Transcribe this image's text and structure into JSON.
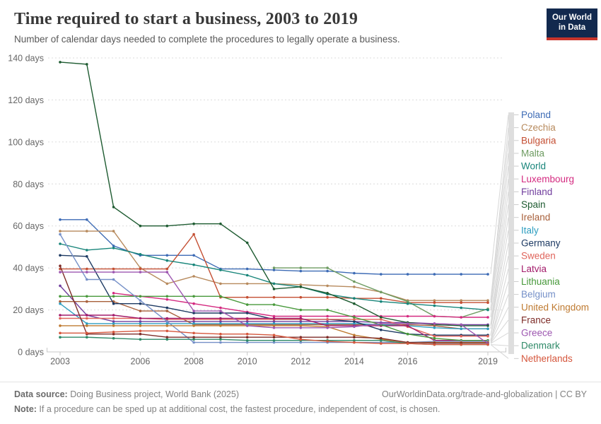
{
  "header": {
    "title": "Time required to start a business, 2003 to 2019",
    "subtitle": "Number of calendar days needed to complete the procedures to legally operate a business."
  },
  "logo": {
    "line1": "Our World",
    "line2": "in Data"
  },
  "footer": {
    "source_label": "Data source:",
    "source_text": " Doing Business project, World Bank (2025)",
    "link_url": "OurWorldinData.org/trade-and-globalization",
    "separator": " | ",
    "license": "CC BY",
    "note_label": "Note:",
    "note_text": " If a procedure can be sped up at additional cost, the fastest procedure, independent of cost, is chosen."
  },
  "chart_data": {
    "type": "line",
    "title": "Time required to start a business, 2003 to 2019",
    "ylabel": "",
    "xlabel": "",
    "ylim": [
      0,
      140
    ],
    "yticks": [
      0,
      20,
      40,
      60,
      80,
      100,
      120,
      140
    ],
    "y_suffix": " days",
    "xticks": [
      2003,
      2006,
      2008,
      2010,
      2012,
      2014,
      2016,
      2019
    ],
    "grid": "dashed",
    "legend_position": "right",
    "x": [
      2003,
      2004,
      2005,
      2006,
      2007,
      2008,
      2009,
      2010,
      2011,
      2012,
      2013,
      2014,
      2015,
      2016,
      2017,
      2018,
      2019
    ],
    "series": [
      {
        "name": "Poland",
        "color": "#3d6bb5",
        "values": [
          63,
          63,
          50.5,
          46,
          46,
          46,
          39.5,
          39.5,
          39,
          38.5,
          38.5,
          37.5,
          37,
          37,
          37,
          37,
          37
        ]
      },
      {
        "name": "Czechia",
        "color": "#b78a5d",
        "values": [
          57.5,
          57.5,
          57.5,
          40,
          32.5,
          36,
          32.5,
          32.5,
          32.5,
          32,
          31.5,
          31,
          28.5,
          24.5,
          24.5,
          24.5,
          24.5
        ]
      },
      {
        "name": "Bulgaria",
        "color": "#c44f33",
        "values": [
          39.5,
          39.5,
          39.5,
          39.5,
          39.5,
          56,
          26,
          26,
          26,
          26,
          26,
          25.5,
          25.5,
          23.5,
          23.5,
          23.5,
          23.5
        ]
      },
      {
        "name": "Malta",
        "color": "#6f9c62",
        "values": [
          null,
          null,
          null,
          null,
          null,
          null,
          null,
          null,
          40,
          40,
          40,
          33.5,
          28.5,
          24,
          17,
          16.5,
          20.5
        ]
      },
      {
        "name": "World",
        "color": "#18857a",
        "values": [
          51.5,
          48.5,
          49.5,
          46.5,
          43.5,
          41.5,
          39,
          36.5,
          32.5,
          31,
          27.5,
          25.5,
          24,
          23,
          22,
          21,
          20
        ]
      },
      {
        "name": "Luxembourg",
        "color": "#d42a80",
        "values": [
          null,
          null,
          28,
          26.5,
          25,
          23,
          21,
          19,
          17,
          17,
          17,
          17,
          17,
          17,
          17,
          16.5,
          16.5
        ]
      },
      {
        "name": "Finland",
        "color": "#713e9e",
        "values": [
          31.5,
          17.5,
          14.5,
          14.5,
          14.5,
          14.5,
          14.5,
          14.5,
          14.5,
          14.5,
          14.5,
          14.5,
          14,
          14,
          13.5,
          13,
          13
        ]
      },
      {
        "name": "Spain",
        "color": "#1e5b31",
        "values": [
          138,
          137,
          69,
          60,
          60,
          61,
          61,
          52,
          30,
          31,
          28,
          23,
          16.5,
          14,
          13,
          12.5,
          12.5
        ]
      },
      {
        "name": "Ireland",
        "color": "#a8603b",
        "values": [
          24,
          24,
          24,
          19.5,
          19.5,
          13,
          13,
          13,
          13,
          13,
          13,
          13,
          13,
          13,
          12.5,
          11,
          11
        ]
      },
      {
        "name": "Italy",
        "color": "#2f9ec0",
        "values": [
          23,
          13.5,
          13.5,
          13.5,
          13.5,
          13.5,
          13.5,
          13.5,
          13.5,
          13.5,
          13.5,
          13.5,
          13,
          12.5,
          11.5,
          11,
          11
        ]
      },
      {
        "name": "Germany",
        "color": "#1d3a63",
        "values": [
          46,
          45.5,
          23,
          23,
          21,
          18.5,
          18.5,
          18.5,
          15.5,
          15.5,
          15.5,
          14.5,
          10.5,
          8.5,
          8,
          8,
          8
        ]
      },
      {
        "name": "Sweden",
        "color": "#e0655c",
        "values": [
          16,
          16,
          16,
          16,
          15.5,
          15.5,
          15.5,
          15.5,
          15.5,
          15.5,
          15.5,
          15.5,
          15.5,
          12,
          7.5,
          7.5,
          7.5
        ]
      },
      {
        "name": "Latvia",
        "color": "#a31c6b",
        "values": [
          17.5,
          17.5,
          17.5,
          16,
          16,
          16,
          16,
          16,
          16,
          16,
          12.5,
          12.5,
          12.5,
          12.5,
          5.5,
          5.5,
          5.5
        ]
      },
      {
        "name": "Lithuania",
        "color": "#48993b",
        "values": [
          26.5,
          26.5,
          26.5,
          26.5,
          26.5,
          26.5,
          26.5,
          22.5,
          22.5,
          20,
          20,
          16.5,
          13,
          8.5,
          6.5,
          5.5,
          5.5
        ]
      },
      {
        "name": "Belgium",
        "color": "#7590c8",
        "values": [
          56,
          34.5,
          34.5,
          24.5,
          14.5,
          4.5,
          4.5,
          4.5,
          4.5,
          4.5,
          4.5,
          4.5,
          4.5,
          4.5,
          5,
          5,
          5
        ]
      },
      {
        "name": "United Kingdom",
        "color": "#bf7b32",
        "values": [
          12.5,
          12.5,
          12.5,
          12.5,
          12.5,
          12.5,
          12.5,
          12.5,
          12.5,
          12.5,
          12,
          8,
          6,
          4.5,
          4.5,
          4.5,
          4.5
        ]
      },
      {
        "name": "France",
        "color": "#7e2d29",
        "values": [
          41,
          8.5,
          8.5,
          8.5,
          7,
          7,
          7,
          7,
          7,
          7,
          7,
          7,
          6.5,
          4.5,
          4.2,
          4.2,
          4.2
        ]
      },
      {
        "name": "Greece",
        "color": "#9d57b0",
        "values": [
          38,
          38,
          38,
          38,
          38,
          19.5,
          19.5,
          12.5,
          11.5,
          11.5,
          11.5,
          12,
          13.5,
          13.5,
          13.5,
          13,
          4
        ]
      },
      {
        "name": "Denmark",
        "color": "#2f8a68",
        "values": [
          7,
          7,
          6.5,
          6,
          6,
          6,
          6,
          5.5,
          5.5,
          5.5,
          5.5,
          5.5,
          5.5,
          4,
          3.5,
          3.5,
          3.5
        ]
      },
      {
        "name": "Netherlands",
        "color": "#d5563c",
        "values": [
          9,
          9,
          9.5,
          10,
          10,
          9,
          8.5,
          8.5,
          8,
          6,
          5,
          4.5,
          4,
          4,
          3.5,
          3.5,
          3.5
        ]
      }
    ]
  }
}
